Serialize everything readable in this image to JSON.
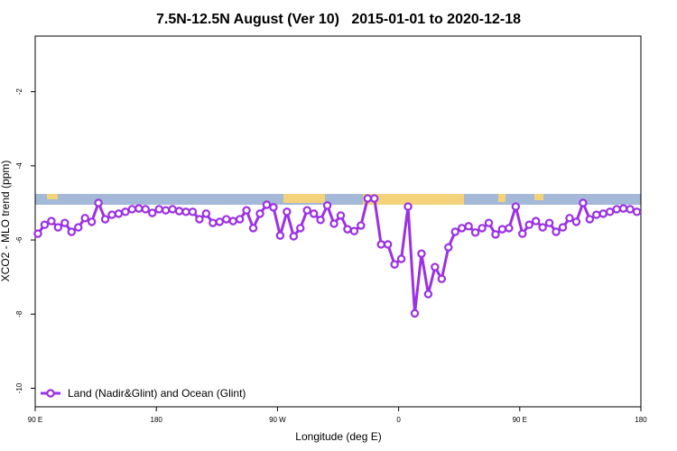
{
  "chart_data": {
    "type": "line",
    "title": "7.5N-12.5N August (Ver 10)   2015-01-01 to 2020-12-18",
    "x_label": "Longitude (deg E)",
    "y_label": "XCO2 - MLO trend (ppm)",
    "xlim": [
      90,
      540
    ],
    "xticks": [
      {
        "value": 90,
        "label": "90 E"
      },
      {
        "value": 180,
        "label": "180"
      },
      {
        "value": 270,
        "label": "90 W"
      },
      {
        "value": 360,
        "label": "0"
      },
      {
        "value": 450,
        "label": "90 E"
      },
      {
        "value": 540,
        "label": "180"
      }
    ],
    "ylim": [
      -10.5,
      -0.5
    ],
    "yticks": [
      -10,
      -8,
      -6,
      -4,
      -2
    ],
    "legend": "lower left",
    "x": [
      92,
      97,
      102,
      107,
      112,
      117,
      122,
      127,
      132,
      137,
      142,
      147,
      152,
      157,
      162,
      167,
      172,
      177,
      182,
      187,
      192,
      197,
      202,
      207,
      212,
      217,
      222,
      227,
      232,
      237,
      242,
      247,
      252,
      257,
      262,
      267,
      272,
      277,
      282,
      287,
      292,
      297,
      302,
      307,
      312,
      317,
      322,
      327,
      332,
      337,
      342,
      347,
      352,
      357,
      362,
      367,
      372,
      377,
      382,
      387,
      392,
      397,
      402,
      407,
      412,
      417,
      422,
      427,
      432,
      437,
      442,
      447,
      452,
      457,
      462,
      467,
      472,
      477,
      482,
      487,
      492,
      497,
      502,
      507,
      512,
      517,
      522,
      527,
      532,
      537
    ],
    "series": [
      {
        "name": "Land (Nadir&Glint) and Ocean (Glint)",
        "color": "#9b30e6",
        "values": [
          -5.83,
          -5.59,
          -5.49,
          -5.66,
          -5.54,
          -5.78,
          -5.66,
          -5.41,
          -5.51,
          -5.0,
          -5.44,
          -5.32,
          -5.29,
          -5.24,
          -5.17,
          -5.15,
          -5.17,
          -5.27,
          -5.17,
          -5.2,
          -5.17,
          -5.22,
          -5.24,
          -5.24,
          -5.44,
          -5.29,
          -5.54,
          -5.51,
          -5.44,
          -5.49,
          -5.44,
          -5.2,
          -5.68,
          -5.29,
          -5.05,
          -5.12,
          -5.88,
          -5.24,
          -5.9,
          -5.68,
          -5.2,
          -5.29,
          -5.46,
          -5.07,
          -5.56,
          -5.34,
          -5.71,
          -5.76,
          -5.61,
          -4.88,
          -4.88,
          -6.12,
          -6.12,
          -6.66,
          -6.51,
          -5.1,
          -7.98,
          -6.37,
          -7.46,
          -6.73,
          -7.05,
          -6.2,
          -5.78,
          -5.68,
          -5.63,
          -5.8,
          -5.68,
          -5.54,
          -5.85,
          -5.71,
          -5.68,
          -5.1,
          -5.83,
          -5.59,
          -5.49,
          -5.66,
          -5.54,
          -5.78,
          -5.66,
          -5.41,
          -5.51,
          -5.0,
          -5.44,
          -5.32,
          -5.29,
          -5.24,
          -5.17,
          -5.15,
          -5.17,
          -5.24
        ]
      }
    ]
  }
}
